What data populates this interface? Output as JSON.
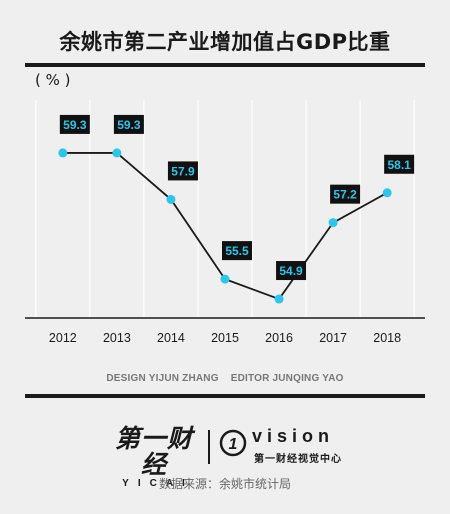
{
  "title": "余姚市第二产业增加值占GDP比重",
  "unit": "( % )",
  "chart_data": {
    "type": "line",
    "categories": [
      "2012",
      "2013",
      "2014",
      "2015",
      "2016",
      "2017",
      "2018"
    ],
    "values": [
      59.3,
      59.3,
      57.9,
      55.5,
      54.9,
      57.2,
      58.1
    ],
    "data_labels": [
      "59.3",
      "59.3",
      "57.9",
      "55.5",
      "54.9",
      "57.2",
      "58.1"
    ],
    "ylim": [
      54.6,
      59.9
    ],
    "grid": "vertical",
    "colors": {
      "marker": "#29c7ec",
      "line": "#1a1a1a",
      "label_bg": "#111111",
      "label_text": "#29c7ec"
    }
  },
  "credits": {
    "design": "DESIGN YIJUN ZHANG",
    "editor": "EDITOR JUNQING YAO"
  },
  "logo": {
    "left_cn": "第一财经",
    "left_en": "YICAI",
    "right_mark": "1",
    "right_en": "vision",
    "right_cn": "第一财经视觉中心"
  },
  "source": "数据来源：余姚市统计局"
}
